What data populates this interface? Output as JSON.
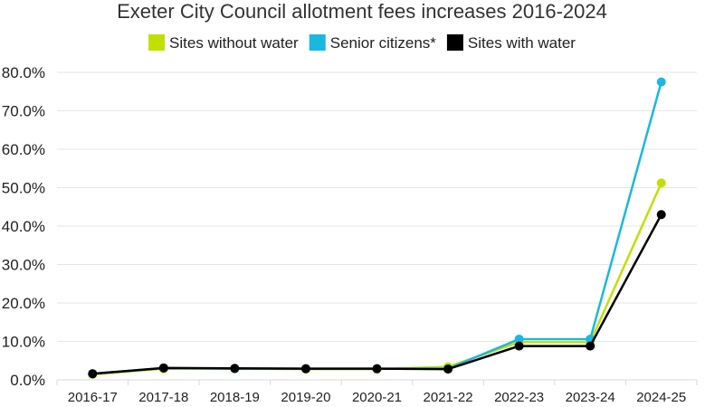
{
  "chart_data": {
    "type": "line",
    "title": "Exeter City Council allotment fees increases 2016-2024",
    "categories": [
      "2016-17",
      "2017-18",
      "2018-19",
      "2019-20",
      "2020-21",
      "2021-22",
      "2022-23",
      "2023-24",
      "2024-25"
    ],
    "yticks": [
      "0.0%",
      "10.0%",
      "20.0%",
      "30.0%",
      "40.0%",
      "50.0%",
      "60.0%",
      "70.0%",
      "80.0%"
    ],
    "ylim": [
      0,
      80
    ],
    "ylabel": "",
    "xlabel": "",
    "grid": true,
    "legend_position": "top",
    "series": [
      {
        "name": "Sites without water",
        "color": "#c2e000",
        "values": [
          1.4,
          2.9,
          2.9,
          2.8,
          2.8,
          3.4,
          9.8,
          9.8,
          51.2
        ]
      },
      {
        "name": "Senior citizens*",
        "color": "#1ab8e0",
        "values": [
          1.6,
          3.1,
          2.9,
          2.9,
          2.9,
          2.9,
          10.6,
          10.6,
          77.5
        ]
      },
      {
        "name": "Sites with water",
        "color": "#000000",
        "values": [
          1.6,
          3.1,
          3.0,
          2.9,
          2.9,
          2.8,
          8.8,
          8.8,
          43.0
        ]
      }
    ]
  }
}
